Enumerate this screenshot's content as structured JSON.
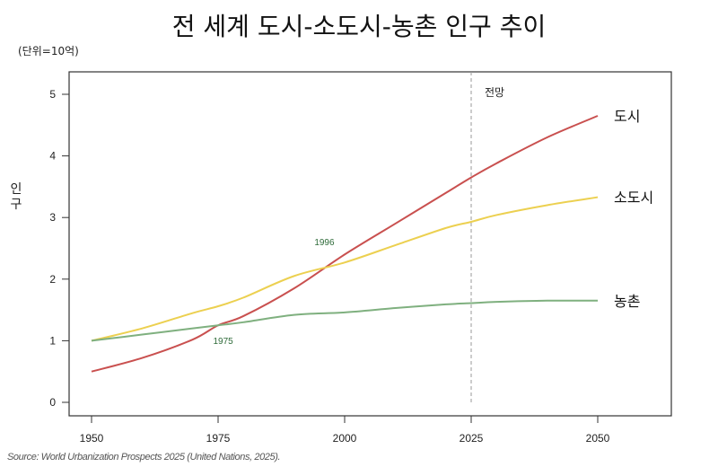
{
  "chart_data": {
    "type": "line",
    "title": "전 세계 도시-소도시-농촌 인구 추이",
    "unit_note": "(단위=10억)",
    "ylabel": "인구",
    "xlabel": "",
    "xlim": [
      1945,
      2064
    ],
    "ylim": [
      -0.2,
      5.4
    ],
    "xticks": [
      1950,
      1975,
      2000,
      2025,
      2050
    ],
    "yticks": [
      0,
      1,
      2,
      3,
      4,
      5
    ],
    "x": [
      1950,
      1960,
      1970,
      1975,
      1980,
      1990,
      2000,
      2010,
      2020,
      2025,
      2030,
      2040,
      2050
    ],
    "series": [
      {
        "name": "도시",
        "color": "#c9504f",
        "values": [
          0.5,
          0.72,
          1.02,
          1.25,
          1.4,
          1.85,
          2.4,
          2.9,
          3.4,
          3.65,
          3.88,
          4.3,
          4.65
        ]
      },
      {
        "name": "소도시",
        "color": "#ecd050",
        "values": [
          1.0,
          1.2,
          1.45,
          1.56,
          1.7,
          2.05,
          2.27,
          2.55,
          2.83,
          2.93,
          3.04,
          3.2,
          3.33
        ]
      },
      {
        "name": "농촌",
        "color": "#7fb07f",
        "values": [
          1.0,
          1.1,
          1.2,
          1.25,
          1.3,
          1.42,
          1.46,
          1.53,
          1.59,
          1.61,
          1.63,
          1.65,
          1.65
        ]
      }
    ],
    "projection_line": {
      "x": 2025,
      "label": "전망"
    },
    "annotations": [
      {
        "text": "1996",
        "x": 1996,
        "y": 2.55,
        "color": "#2f6b3a"
      },
      {
        "text": "1975",
        "x": 1976,
        "y": 0.95,
        "color": "#2f6b3a"
      }
    ],
    "grid": false,
    "legend": "inline-right",
    "source": "Source: World Urbanization Prospects 2025 (United Nations, 2025)."
  }
}
